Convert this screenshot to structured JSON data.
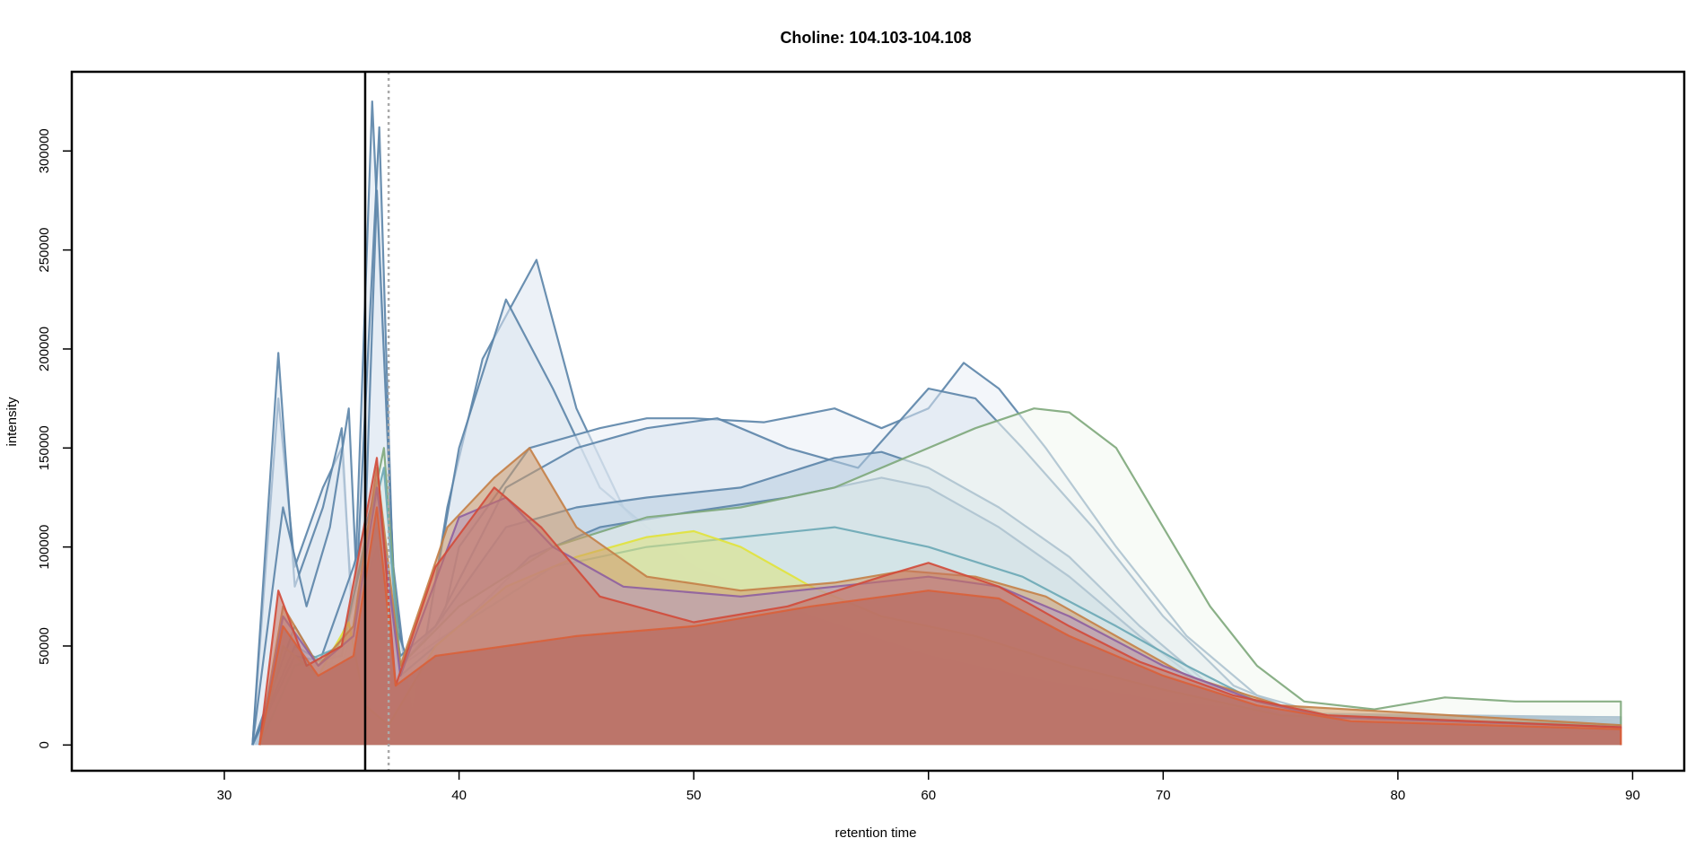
{
  "chart_data": {
    "type": "area",
    "title": "Choline: 104.103-104.108",
    "xlabel": "retention time",
    "ylabel": "intensity",
    "xlim": [
      23.5,
      92.2
    ],
    "ylim": [
      -13000,
      340000
    ],
    "x_ticks": [
      30,
      40,
      50,
      60,
      70,
      80,
      90
    ],
    "x_tick_labels": [
      "30",
      "40",
      "50",
      "60",
      "70",
      "80",
      "90"
    ],
    "y_ticks": [
      0,
      50000,
      100000,
      150000,
      200000,
      250000,
      300000
    ],
    "y_tick_labels": [
      "0",
      "50000",
      "100000",
      "150000",
      "200000",
      "250000",
      "300000"
    ],
    "grid": false,
    "legend": "none",
    "vertical_lines": [
      {
        "x": 36.0,
        "style": "solid",
        "color": "#000000"
      },
      {
        "x": 37.0,
        "style": "dotted",
        "color": "#aaaaaa"
      }
    ],
    "series": [
      {
        "color": "#5b84a8",
        "fill": "#dde6f1",
        "points": [
          [
            31.2,
            0
          ],
          [
            32.3,
            175000
          ],
          [
            33.0,
            90000
          ],
          [
            34.2,
            130000
          ],
          [
            35.0,
            150000
          ],
          [
            35.5,
            60000
          ],
          [
            36.3,
            325000
          ],
          [
            37.2,
            90000
          ],
          [
            38.0,
            10000
          ],
          [
            39.5,
            120000
          ],
          [
            41.0,
            195000
          ],
          [
            43.3,
            245000
          ],
          [
            45.0,
            170000
          ],
          [
            47.0,
            120000
          ],
          [
            50.0,
            80000
          ],
          [
            55.0,
            60000
          ],
          [
            60.0,
            40000
          ],
          [
            65.0,
            30000
          ],
          [
            70.0,
            20000
          ],
          [
            75.0,
            15000
          ],
          [
            80.0,
            12000
          ],
          [
            89.5,
            12000
          ],
          [
            89.5,
            0
          ]
        ]
      },
      {
        "color": "#5b84a8",
        "fill": "#dde6f1",
        "points": [
          [
            31.2,
            0
          ],
          [
            32.3,
            198000
          ],
          [
            33.0,
            80000
          ],
          [
            34.2,
            120000
          ],
          [
            35.0,
            160000
          ],
          [
            35.5,
            50000
          ],
          [
            36.6,
            312000
          ],
          [
            37.2,
            80000
          ],
          [
            38.0,
            15000
          ],
          [
            40.0,
            150000
          ],
          [
            42.0,
            225000
          ],
          [
            44.0,
            180000
          ],
          [
            46.0,
            130000
          ],
          [
            50.0,
            90000
          ],
          [
            55.0,
            65000
          ],
          [
            60.0,
            45000
          ],
          [
            65.0,
            32000
          ],
          [
            70.0,
            22000
          ],
          [
            75.0,
            16000
          ],
          [
            89.5,
            14000
          ],
          [
            89.5,
            0
          ]
        ]
      },
      {
        "color": "#5b84a8",
        "fill": "#e9eff6",
        "points": [
          [
            31.2,
            0
          ],
          [
            32.5,
            120000
          ],
          [
            33.5,
            70000
          ],
          [
            34.5,
            110000
          ],
          [
            35.3,
            170000
          ],
          [
            35.8,
            40000
          ],
          [
            36.5,
            280000
          ],
          [
            37.3,
            60000
          ],
          [
            38.5,
            20000
          ],
          [
            40.0,
            100000
          ],
          [
            43.0,
            150000
          ],
          [
            46.0,
            160000
          ],
          [
            48.0,
            165000
          ],
          [
            50.0,
            165000
          ],
          [
            53.0,
            163000
          ],
          [
            56.0,
            170000
          ],
          [
            58.0,
            160000
          ],
          [
            60.0,
            170000
          ],
          [
            61.5,
            193000
          ],
          [
            63.0,
            180000
          ],
          [
            65.0,
            150000
          ],
          [
            68.0,
            100000
          ],
          [
            71.0,
            55000
          ],
          [
            74.0,
            25000
          ],
          [
            77.0,
            15000
          ],
          [
            89.5,
            14000
          ],
          [
            89.5,
            0
          ]
        ]
      },
      {
        "color": "#5b84a8",
        "fill": "#d9e4ef",
        "points": [
          [
            31.2,
            0
          ],
          [
            33.0,
            60000
          ],
          [
            34.0,
            40000
          ],
          [
            35.5,
            90000
          ],
          [
            36.5,
            130000
          ],
          [
            37.5,
            40000
          ],
          [
            39.0,
            60000
          ],
          [
            42.0,
            130000
          ],
          [
            45.0,
            150000
          ],
          [
            48.0,
            160000
          ],
          [
            51.0,
            165000
          ],
          [
            54.0,
            150000
          ],
          [
            57.0,
            140000
          ],
          [
            60.0,
            180000
          ],
          [
            62.0,
            175000
          ],
          [
            64.0,
            150000
          ],
          [
            67.0,
            110000
          ],
          [
            70.0,
            65000
          ],
          [
            73.0,
            30000
          ],
          [
            76.0,
            15000
          ],
          [
            89.5,
            13000
          ],
          [
            89.5,
            0
          ]
        ]
      },
      {
        "color": "#5b84a8",
        "fill": "#b8cde0",
        "points": [
          [
            31.2,
            0
          ],
          [
            33.0,
            50000
          ],
          [
            34.5,
            40000
          ],
          [
            35.5,
            70000
          ],
          [
            36.5,
            110000
          ],
          [
            37.5,
            45000
          ],
          [
            39.0,
            60000
          ],
          [
            42.0,
            110000
          ],
          [
            45.0,
            120000
          ],
          [
            48.0,
            125000
          ],
          [
            52.0,
            130000
          ],
          [
            56.0,
            145000
          ],
          [
            58.0,
            148000
          ],
          [
            60.0,
            140000
          ],
          [
            63.0,
            120000
          ],
          [
            66.0,
            95000
          ],
          [
            69.0,
            60000
          ],
          [
            72.0,
            30000
          ],
          [
            75.0,
            15000
          ],
          [
            89.5,
            12000
          ],
          [
            89.5,
            0
          ]
        ]
      },
      {
        "color": "#5b84a8",
        "fill": "#a4bfd6",
        "points": [
          [
            31.2,
            0
          ],
          [
            33.0,
            45000
          ],
          [
            35.0,
            40000
          ],
          [
            36.5,
            100000
          ],
          [
            37.5,
            40000
          ],
          [
            40.0,
            60000
          ],
          [
            43.0,
            95000
          ],
          [
            46.0,
            110000
          ],
          [
            50.0,
            118000
          ],
          [
            54.0,
            125000
          ],
          [
            58.0,
            135000
          ],
          [
            60.0,
            130000
          ],
          [
            63.0,
            110000
          ],
          [
            66.0,
            85000
          ],
          [
            69.0,
            55000
          ],
          [
            72.0,
            28000
          ],
          [
            75.0,
            14000
          ],
          [
            89.5,
            11000
          ],
          [
            89.5,
            0
          ]
        ]
      },
      {
        "color": "#7da77a",
        "fill": "#f2f8f1",
        "points": [
          [
            31.5,
            0
          ],
          [
            33.0,
            40000
          ],
          [
            35.0,
            45000
          ],
          [
            36.8,
            150000
          ],
          [
            37.5,
            40000
          ],
          [
            40.0,
            70000
          ],
          [
            44.0,
            100000
          ],
          [
            48.0,
            115000
          ],
          [
            52.0,
            120000
          ],
          [
            56.0,
            130000
          ],
          [
            59.0,
            145000
          ],
          [
            62.0,
            160000
          ],
          [
            64.5,
            170000
          ],
          [
            66.0,
            168000
          ],
          [
            68.0,
            150000
          ],
          [
            70.0,
            110000
          ],
          [
            72.0,
            70000
          ],
          [
            74.0,
            40000
          ],
          [
            76.0,
            22000
          ],
          [
            79.0,
            18000
          ],
          [
            82.0,
            24000
          ],
          [
            85.0,
            22000
          ],
          [
            89.5,
            22000
          ],
          [
            89.5,
            0
          ]
        ]
      },
      {
        "color": "#6aa7b5",
        "fill": "#cfe3e6",
        "points": [
          [
            31.5,
            0
          ],
          [
            33.0,
            40000
          ],
          [
            35.0,
            50000
          ],
          [
            36.8,
            140000
          ],
          [
            37.5,
            35000
          ],
          [
            40.0,
            60000
          ],
          [
            44.0,
            90000
          ],
          [
            48.0,
            100000
          ],
          [
            52.0,
            105000
          ],
          [
            56.0,
            110000
          ],
          [
            60.0,
            100000
          ],
          [
            64.0,
            85000
          ],
          [
            68.0,
            60000
          ],
          [
            71.0,
            40000
          ],
          [
            74.0,
            22000
          ],
          [
            77.0,
            14000
          ],
          [
            89.5,
            10000
          ],
          [
            89.5,
            0
          ]
        ]
      },
      {
        "color": "#e1e23a",
        "fill": "#dfe37a",
        "points": [
          [
            31.5,
            0
          ],
          [
            32.5,
            50000
          ],
          [
            34.0,
            35000
          ],
          [
            35.3,
            62000
          ],
          [
            36.0,
            20000
          ],
          [
            37.0,
            10000
          ],
          [
            39.0,
            50000
          ],
          [
            42.0,
            80000
          ],
          [
            45.0,
            95000
          ],
          [
            48.0,
            105000
          ],
          [
            50.0,
            108000
          ],
          [
            52.0,
            100000
          ],
          [
            55.0,
            80000
          ],
          [
            58.0,
            65000
          ],
          [
            62.0,
            55000
          ],
          [
            66.0,
            40000
          ],
          [
            70.0,
            28000
          ],
          [
            75.0,
            15000
          ],
          [
            89.5,
            8000
          ],
          [
            89.5,
            0
          ]
        ]
      },
      {
        "color": "#c47f47",
        "fill": "#cf9a6a",
        "points": [
          [
            31.5,
            0
          ],
          [
            32.5,
            70000
          ],
          [
            34.0,
            40000
          ],
          [
            35.5,
            60000
          ],
          [
            36.5,
            140000
          ],
          [
            37.5,
            40000
          ],
          [
            39.5,
            110000
          ],
          [
            41.5,
            135000
          ],
          [
            43.0,
            150000
          ],
          [
            45.0,
            110000
          ],
          [
            48.0,
            85000
          ],
          [
            52.0,
            78000
          ],
          [
            56.0,
            82000
          ],
          [
            59.0,
            88000
          ],
          [
            62.0,
            85000
          ],
          [
            65.0,
            75000
          ],
          [
            68.0,
            55000
          ],
          [
            71.0,
            35000
          ],
          [
            75.0,
            20000
          ],
          [
            89.5,
            10000
          ],
          [
            89.5,
            0
          ]
        ]
      },
      {
        "color": "#8e5fa0",
        "fill": "#b597c0",
        "points": [
          [
            31.5,
            0
          ],
          [
            32.5,
            65000
          ],
          [
            34.0,
            40000
          ],
          [
            35.5,
            55000
          ],
          [
            36.5,
            130000
          ],
          [
            37.5,
            35000
          ],
          [
            40.0,
            115000
          ],
          [
            42.0,
            125000
          ],
          [
            44.0,
            100000
          ],
          [
            47.0,
            80000
          ],
          [
            52.0,
            75000
          ],
          [
            56.0,
            80000
          ],
          [
            60.0,
            85000
          ],
          [
            63.0,
            80000
          ],
          [
            66.0,
            65000
          ],
          [
            70.0,
            40000
          ],
          [
            74.0,
            22000
          ],
          [
            77.0,
            14000
          ],
          [
            89.5,
            9000
          ],
          [
            89.5,
            0
          ]
        ]
      },
      {
        "color": "#d24a3a",
        "fill": "#c8745f",
        "points": [
          [
            31.5,
            0
          ],
          [
            32.3,
            78000
          ],
          [
            33.5,
            40000
          ],
          [
            35.0,
            50000
          ],
          [
            36.5,
            145000
          ],
          [
            37.3,
            30000
          ],
          [
            39.0,
            90000
          ],
          [
            41.5,
            130000
          ],
          [
            43.5,
            110000
          ],
          [
            46.0,
            75000
          ],
          [
            50.0,
            62000
          ],
          [
            54.0,
            70000
          ],
          [
            58.0,
            85000
          ],
          [
            60.0,
            92000
          ],
          [
            63.0,
            80000
          ],
          [
            66.0,
            60000
          ],
          [
            69.0,
            42000
          ],
          [
            73.0,
            25000
          ],
          [
            77.0,
            15000
          ],
          [
            89.5,
            9000
          ],
          [
            89.5,
            0
          ]
        ]
      },
      {
        "color": "#d9603a",
        "fill": "#b5655a",
        "points": [
          [
            31.5,
            0
          ],
          [
            32.5,
            60000
          ],
          [
            34.0,
            35000
          ],
          [
            35.5,
            45000
          ],
          [
            36.5,
            120000
          ],
          [
            37.3,
            30000
          ],
          [
            39.0,
            45000
          ],
          [
            42.0,
            50000
          ],
          [
            45.0,
            55000
          ],
          [
            50.0,
            60000
          ],
          [
            55.0,
            70000
          ],
          [
            60.0,
            78000
          ],
          [
            63.0,
            74000
          ],
          [
            66.0,
            55000
          ],
          [
            70.0,
            35000
          ],
          [
            74.0,
            20000
          ],
          [
            78.0,
            12000
          ],
          [
            89.5,
            8000
          ],
          [
            89.5,
            0
          ]
        ]
      }
    ]
  }
}
